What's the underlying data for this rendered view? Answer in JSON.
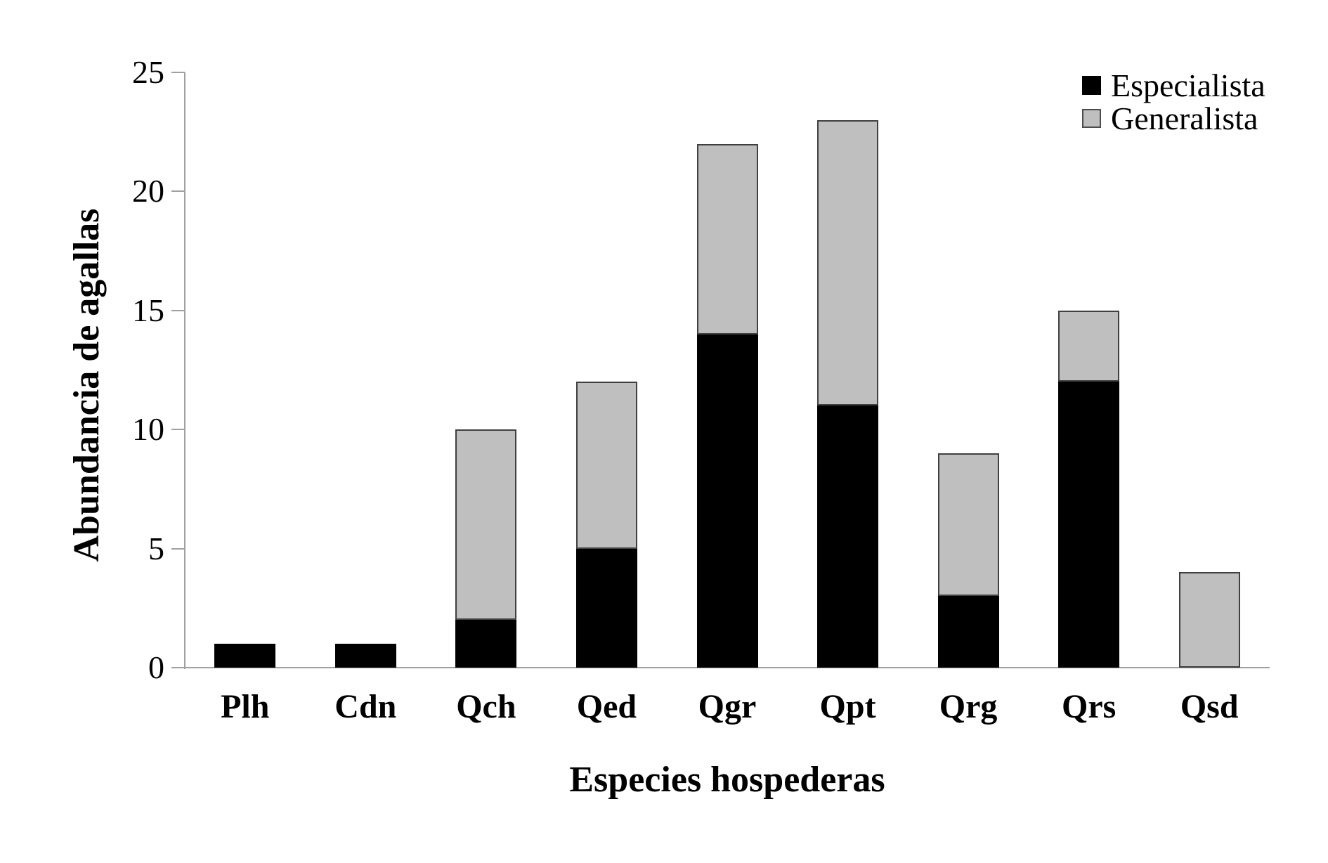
{
  "chart_data": {
    "type": "bar",
    "stacked": true,
    "title": "",
    "xlabel": "Especies hospederas",
    "ylabel": "Abundancia de agallas",
    "categories": [
      "Plh",
      "Cdn",
      "Qch",
      "Qed",
      "Qgr",
      "Qpt",
      "Qrg",
      "Qrs",
      "Qsd"
    ],
    "series": [
      {
        "name": "Especialista",
        "color": "#000000",
        "values": [
          1,
          1,
          2,
          5,
          14,
          11,
          3,
          12,
          0
        ]
      },
      {
        "name": "Generalista",
        "color": "#bfbfbf",
        "values": [
          0,
          0,
          8,
          7,
          8,
          12,
          6,
          3,
          4
        ]
      }
    ],
    "totals": [
      1,
      1,
      10,
      12,
      22,
      23,
      9,
      15,
      4
    ],
    "ylim": [
      0,
      25
    ],
    "yticks": [
      0,
      5,
      10,
      15,
      20,
      25
    ],
    "grid": false,
    "legend_position": "top-right"
  },
  "colors": {
    "background": "#ffffff",
    "axis": "#a0a0a0",
    "text": "#000000",
    "especialista_fill": "#000000",
    "generalista_fill": "#bfbfbf",
    "bar_border_dark": "#404040",
    "legend_gray_border": "#4d4d4d"
  }
}
